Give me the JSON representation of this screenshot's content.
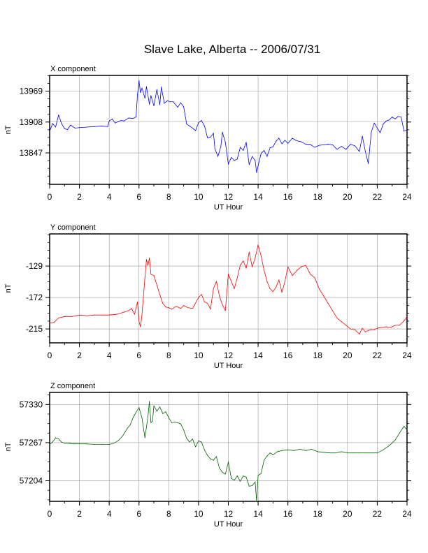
{
  "title": "Slave Lake, Alberta -- 2006/07/31",
  "chart_data": [
    {
      "type": "line",
      "title": "X component",
      "xlabel": "UT Hour",
      "ylabel": "nT",
      "xlim": [
        0,
        24
      ],
      "ylim": [
        13785,
        14000
      ],
      "xticks": [
        0,
        2,
        4,
        6,
        8,
        10,
        12,
        14,
        16,
        18,
        20,
        22,
        24
      ],
      "xtick_labels": [
        "0",
        "2",
        "4",
        "6",
        "8",
        "10",
        "12",
        "14",
        "16",
        "18",
        "20",
        "22",
        "24"
      ],
      "yticks": [
        13847,
        13908,
        13969
      ],
      "ytick_labels": [
        "13847",
        "13908",
        "13969"
      ],
      "grid": true,
      "color": "#0000ff",
      "series": [
        {
          "x": [
            0,
            0.2,
            0.4,
            0.6,
            0.8,
            1.0,
            1.2,
            1.4,
            1.7,
            2.0,
            2.5,
            3.0,
            3.5,
            3.9,
            4.0,
            4.2,
            4.4,
            4.6,
            4.8,
            5.0,
            5.3,
            5.6,
            5.8,
            5.9,
            6.0,
            6.1,
            6.2,
            6.4,
            6.5,
            6.7,
            6.8,
            7.0,
            7.2,
            7.4,
            7.5,
            7.7,
            7.9,
            8.1,
            8.3,
            8.6,
            8.8,
            9.0,
            9.2,
            9.4,
            9.6,
            9.8,
            10.0,
            10.2,
            10.4,
            10.6,
            10.8,
            11.0,
            11.1,
            11.3,
            11.5,
            11.6,
            11.8,
            12.0,
            12.2,
            12.4,
            12.6,
            12.8,
            13.0,
            13.2,
            13.4,
            13.6,
            13.8,
            13.9,
            14.0,
            14.2,
            14.4,
            14.6,
            14.8,
            15.0,
            15.2,
            15.4,
            15.6,
            15.8,
            16.0,
            16.3,
            16.6,
            16.9,
            17.2,
            17.5,
            17.8,
            18.1,
            18.4,
            18.7,
            19.0,
            19.3,
            19.6,
            19.9,
            20.2,
            20.5,
            20.8,
            21.0,
            21.2,
            21.4,
            21.6,
            21.8,
            22.0,
            22.2,
            22.4,
            22.6,
            22.8,
            23.0,
            23.2,
            23.4,
            23.6,
            23.8,
            24.0
          ],
          "values": [
            13890,
            13905,
            13898,
            13922,
            13905,
            13895,
            13893,
            13902,
            13896,
            13897,
            13898,
            13899,
            13900,
            13899,
            13910,
            13914,
            13906,
            13909,
            13911,
            13910,
            13916,
            13915,
            13918,
            13962,
            13990,
            13966,
            13975,
            13955,
            13978,
            13943,
            13960,
            13940,
            13972,
            13942,
            13977,
            13945,
            13950,
            13948,
            13948,
            13937,
            13946,
            13938,
            13904,
            13900,
            13896,
            13891,
            13907,
            13911,
            13900,
            13877,
            13878,
            13886,
            13855,
            13840,
            13860,
            13888,
            13868,
            13825,
            13838,
            13832,
            13835,
            13858,
            13852,
            13868,
            13824,
            13840,
            13832,
            13808,
            13822,
            13846,
            13852,
            13840,
            13857,
            13859,
            13870,
            13876,
            13865,
            13872,
            13866,
            13876,
            13871,
            13869,
            13864,
            13864,
            13858,
            13862,
            13863,
            13864,
            13863,
            13854,
            13860,
            13854,
            13864,
            13861,
            13850,
            13880,
            13850,
            13826,
            13888,
            13906,
            13896,
            13887,
            13904,
            13910,
            13912,
            13918,
            13914,
            13919,
            13918,
            13890,
            13893
          ]
        }
      ]
    },
    {
      "type": "line",
      "title": "Y component",
      "xlabel": "UT Hour",
      "ylabel": "nT",
      "xlim": [
        0,
        24
      ],
      "ylim": [
        -234,
        -85
      ],
      "xticks": [
        0,
        2,
        4,
        6,
        8,
        10,
        12,
        14,
        16,
        18,
        20,
        22,
        24
      ],
      "xtick_labels": [
        "0",
        "2",
        "4",
        "6",
        "8",
        "10",
        "12",
        "14",
        "16",
        "18",
        "20",
        "22",
        "24"
      ],
      "yticks": [
        -215,
        -172,
        -129
      ],
      "ytick_labels": [
        "-215",
        "-172",
        "-129"
      ],
      "grid": true,
      "color": "#ff0000",
      "series": [
        {
          "x": [
            0,
            0.3,
            0.6,
            1.0,
            1.5,
            2.0,
            2.5,
            3.0,
            3.5,
            4.0,
            4.5,
            5.0,
            5.3,
            5.5,
            5.7,
            5.9,
            6.0,
            6.1,
            6.2,
            6.3,
            6.4,
            6.5,
            6.6,
            6.7,
            6.8,
            7.0,
            7.2,
            7.4,
            7.6,
            7.8,
            8.0,
            8.2,
            8.5,
            8.8,
            9.0,
            9.3,
            9.6,
            10.0,
            10.2,
            10.4,
            10.6,
            10.8,
            11.0,
            11.2,
            11.4,
            11.6,
            11.8,
            12.0,
            12.2,
            12.4,
            12.6,
            12.8,
            13.0,
            13.2,
            13.4,
            13.6,
            13.8,
            14.0,
            14.2,
            14.4,
            14.6,
            14.8,
            15.0,
            15.2,
            15.4,
            15.6,
            15.8,
            16.0,
            16.3,
            16.6,
            16.9,
            17.2,
            17.5,
            17.8,
            18.1,
            18.4,
            18.7,
            19.0,
            19.3,
            19.6,
            19.9,
            20.2,
            20.5,
            20.8,
            21.0,
            21.2,
            21.4,
            21.6,
            21.8,
            22.0,
            22.3,
            22.6,
            22.9,
            23.2,
            23.5,
            23.8,
            24.0
          ],
          "values": [
            -207,
            -206,
            -200,
            -198,
            -198,
            -196,
            -197,
            -196,
            -196,
            -196,
            -195,
            -192,
            -190,
            -187,
            -195,
            -178,
            -205,
            -212,
            -195,
            -170,
            -145,
            -120,
            -128,
            -118,
            -140,
            -142,
            -155,
            -168,
            -180,
            -185,
            -186,
            -188,
            -184,
            -187,
            -183,
            -186,
            -187,
            -172,
            -168,
            -178,
            -180,
            -188,
            -160,
            -150,
            -170,
            -182,
            -190,
            -140,
            -150,
            -160,
            -145,
            -128,
            -122,
            -132,
            -110,
            -130,
            -118,
            -100,
            -115,
            -135,
            -150,
            -160,
            -164,
            -158,
            -148,
            -165,
            -150,
            -130,
            -142,
            -135,
            -130,
            -128,
            -140,
            -145,
            -160,
            -170,
            -180,
            -190,
            -200,
            -205,
            -210,
            -215,
            -216,
            -222,
            -214,
            -219,
            -217,
            -216,
            -216,
            -214,
            -213,
            -212,
            -213,
            -210,
            -210,
            -204,
            -198
          ]
        }
      ]
    },
    {
      "type": "line",
      "title": "Z component",
      "xlabel": "UT Hour",
      "ylabel": "nT",
      "xlim": [
        0,
        24
      ],
      "ylim": [
        57170,
        57350
      ],
      "xticks": [
        0,
        2,
        4,
        6,
        8,
        10,
        12,
        14,
        16,
        18,
        20,
        22,
        24
      ],
      "xtick_labels": [
        "0",
        "2",
        "4",
        "6",
        "8",
        "10",
        "12",
        "14",
        "16",
        "18",
        "20",
        "22",
        "24"
      ],
      "yticks": [
        57204,
        57267,
        57330
      ],
      "ytick_labels": [
        "57204",
        "57267",
        "57330"
      ],
      "grid": true,
      "color": "#006400",
      "series": [
        {
          "x": [
            0,
            0.2,
            0.4,
            0.6,
            0.8,
            1.0,
            1.3,
            1.6,
            2.0,
            2.5,
            3.0,
            3.5,
            4.0,
            4.3,
            4.6,
            4.9,
            5.2,
            5.4,
            5.6,
            5.8,
            6.0,
            6.2,
            6.4,
            6.6,
            6.7,
            6.8,
            6.9,
            7.0,
            7.2,
            7.4,
            7.6,
            7.8,
            8.0,
            8.2,
            8.4,
            8.6,
            8.8,
            9.0,
            9.2,
            9.4,
            9.6,
            9.8,
            10.0,
            10.2,
            10.4,
            10.6,
            10.8,
            11.0,
            11.2,
            11.4,
            11.6,
            11.8,
            12.0,
            12.2,
            12.4,
            12.6,
            12.8,
            13.0,
            13.2,
            13.4,
            13.6,
            13.8,
            13.9,
            14.0,
            14.2,
            14.4,
            14.6,
            14.8,
            15.0,
            15.3,
            15.6,
            16.0,
            16.4,
            16.8,
            17.2,
            17.6,
            18.0,
            18.4,
            18.8,
            19.2,
            19.6,
            20.0,
            20.4,
            20.8,
            21.2,
            21.6,
            22.0,
            22.4,
            22.8,
            23.2,
            23.5,
            23.8,
            24.0
          ],
          "values": [
            57264,
            57268,
            57275,
            57273,
            57268,
            57266,
            57266,
            57265,
            57265,
            57265,
            57264,
            57264,
            57264,
            57266,
            57270,
            57278,
            57290,
            57296,
            57308,
            57317,
            57325,
            57308,
            57275,
            57310,
            57335,
            57300,
            57302,
            57328,
            57319,
            57326,
            57315,
            57318,
            57308,
            57300,
            57301,
            57300,
            57298,
            57288,
            57274,
            57268,
            57273,
            57260,
            57270,
            57268,
            57255,
            57246,
            57240,
            57238,
            57244,
            57225,
            57218,
            57215,
            57235,
            57208,
            57205,
            57212,
            57203,
            57212,
            57210,
            57195,
            57196,
            57202,
            57170,
            57213,
            57216,
            57238,
            57245,
            57250,
            57247,
            57252,
            57254,
            57255,
            57254,
            57256,
            57254,
            57256,
            57252,
            57251,
            57250,
            57250,
            57252,
            57250,
            57250,
            57250,
            57250,
            57250,
            57250,
            57255,
            57262,
            57271,
            57283,
            57294,
            57288
          ]
        }
      ]
    }
  ]
}
